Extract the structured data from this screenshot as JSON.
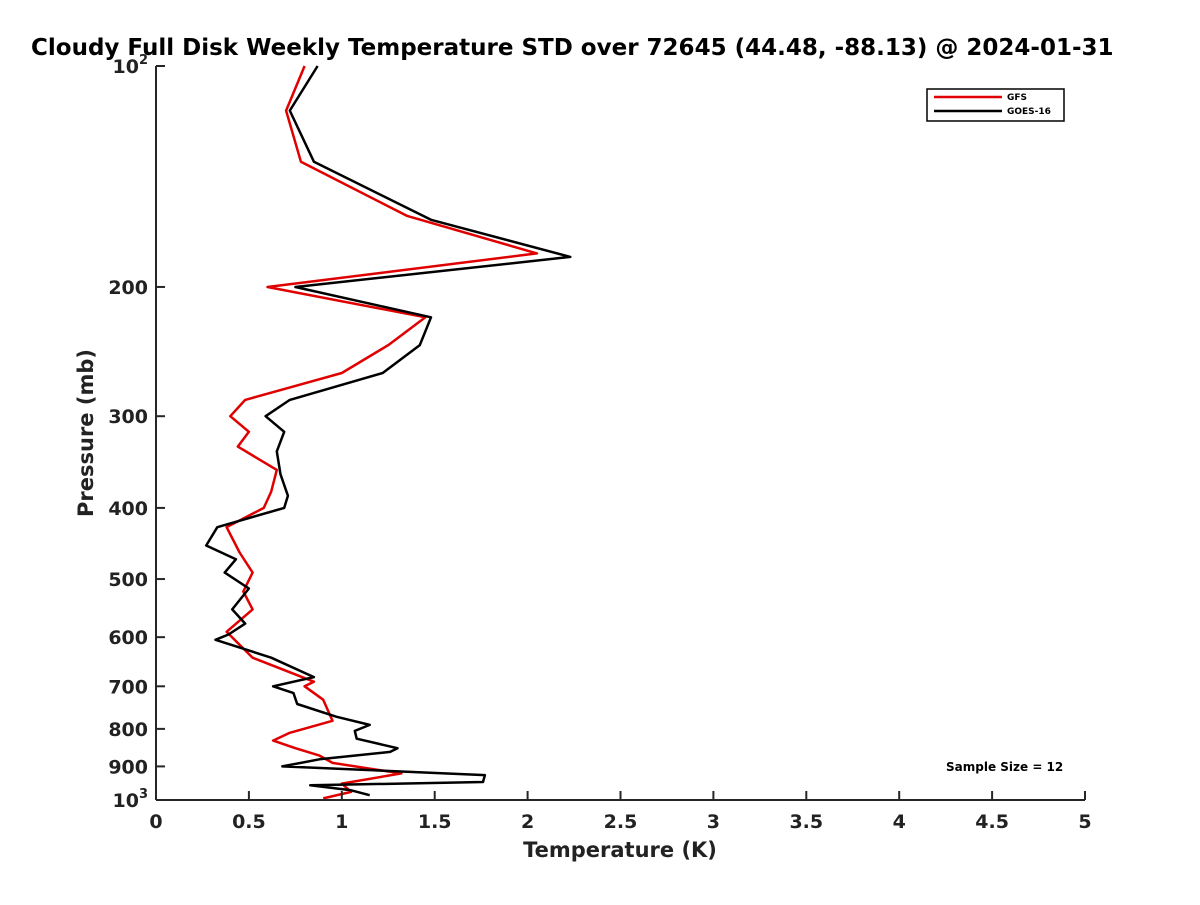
{
  "chart_data": {
    "type": "line",
    "title": "Cloudy Full Disk Weekly Temperature STD over 72645 (44.48, -88.13) @ 2024-01-31",
    "xlabel": "Temperature (K)",
    "ylabel": "Pressure (mb)",
    "xlim": [
      0,
      5
    ],
    "ylim": [
      100,
      1000
    ],
    "y_scale": "log",
    "y_reversed": true,
    "x_ticks": [
      "0",
      "0.5",
      "1",
      "1.5",
      "2",
      "2.5",
      "3",
      "3.5",
      "4",
      "4.5",
      "5"
    ],
    "y_ticks": [
      {
        "value": 100,
        "label": "10",
        "sup": "2"
      },
      {
        "value": 200,
        "label": "200",
        "sup": ""
      },
      {
        "value": 300,
        "label": "300",
        "sup": ""
      },
      {
        "value": 400,
        "label": "400",
        "sup": ""
      },
      {
        "value": 500,
        "label": "500",
        "sup": ""
      },
      {
        "value": 600,
        "label": "600",
        "sup": ""
      },
      {
        "value": 700,
        "label": "700",
        "sup": ""
      },
      {
        "value": 800,
        "label": "800",
        "sup": ""
      },
      {
        "value": 900,
        "label": "900",
        "sup": ""
      },
      {
        "value": 1000,
        "label": "10",
        "sup": "3"
      }
    ],
    "grid": false,
    "legend_position": "top-right",
    "annotation": "Sample Size = 12",
    "series": [
      {
        "name": "GFS",
        "color": "#e00000",
        "points": [
          [
            0.8,
            100
          ],
          [
            0.7,
            115
          ],
          [
            0.78,
            135
          ],
          [
            1.35,
            160
          ],
          [
            2.05,
            180
          ],
          [
            0.6,
            200
          ],
          [
            1.45,
            220
          ],
          [
            1.25,
            240
          ],
          [
            1.0,
            262
          ],
          [
            0.48,
            285
          ],
          [
            0.4,
            300
          ],
          [
            0.5,
            315
          ],
          [
            0.44,
            330
          ],
          [
            0.65,
            355
          ],
          [
            0.62,
            380
          ],
          [
            0.58,
            400
          ],
          [
            0.38,
            425
          ],
          [
            0.45,
            460
          ],
          [
            0.52,
            490
          ],
          [
            0.47,
            520
          ],
          [
            0.52,
            550
          ],
          [
            0.38,
            590
          ],
          [
            0.52,
            640
          ],
          [
            0.85,
            690
          ],
          [
            0.8,
            700
          ],
          [
            0.9,
            730
          ],
          [
            0.95,
            780
          ],
          [
            0.72,
            810
          ],
          [
            0.63,
            830
          ],
          [
            0.75,
            850
          ],
          [
            0.88,
            870
          ],
          [
            0.95,
            890
          ],
          [
            1.32,
            920
          ],
          [
            1.0,
            950
          ],
          [
            1.05,
            975
          ],
          [
            0.9,
            995
          ]
        ]
      },
      {
        "name": "GOES-16",
        "color": "#000000",
        "points": [
          [
            0.87,
            100
          ],
          [
            0.72,
            115
          ],
          [
            0.85,
            135
          ],
          [
            1.48,
            162
          ],
          [
            2.23,
            182
          ],
          [
            0.75,
            200
          ],
          [
            1.48,
            220
          ],
          [
            1.42,
            240
          ],
          [
            1.22,
            262
          ],
          [
            0.72,
            285
          ],
          [
            0.59,
            300
          ],
          [
            0.69,
            315
          ],
          [
            0.65,
            335
          ],
          [
            0.67,
            360
          ],
          [
            0.71,
            385
          ],
          [
            0.69,
            400
          ],
          [
            0.33,
            425
          ],
          [
            0.27,
            450
          ],
          [
            0.43,
            470
          ],
          [
            0.37,
            490
          ],
          [
            0.5,
            515
          ],
          [
            0.41,
            550
          ],
          [
            0.48,
            575
          ],
          [
            0.39,
            595
          ],
          [
            0.32,
            605
          ],
          [
            0.62,
            640
          ],
          [
            0.85,
            680
          ],
          [
            0.63,
            700
          ],
          [
            0.74,
            715
          ],
          [
            0.76,
            740
          ],
          [
            0.97,
            770
          ],
          [
            1.15,
            790
          ],
          [
            1.07,
            805
          ],
          [
            1.08,
            825
          ],
          [
            1.3,
            850
          ],
          [
            1.26,
            860
          ],
          [
            0.88,
            880
          ],
          [
            0.68,
            900
          ],
          [
            1.77,
            925
          ],
          [
            1.76,
            945
          ],
          [
            0.83,
            955
          ],
          [
            1.05,
            970
          ],
          [
            1.15,
            985
          ]
        ]
      }
    ]
  }
}
